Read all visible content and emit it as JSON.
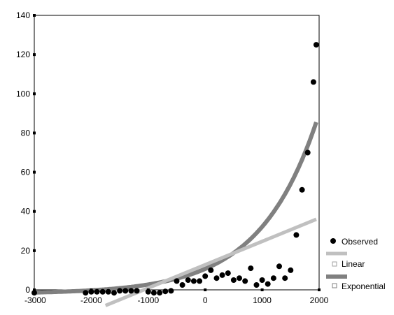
{
  "chart_data": {
    "type": "scatter",
    "xlim": [
      -3000,
      2000
    ],
    "ylim": [
      0,
      140
    ],
    "x_ticks": [
      -3000,
      -2000,
      -1000,
      0,
      1000,
      2000
    ],
    "y_ticks": [
      0,
      20,
      40,
      60,
      80,
      100,
      120,
      140
    ],
    "x_tick_labels": [
      "-3000",
      "-2000",
      "-1000",
      "0",
      "1000",
      "2000"
    ],
    "y_tick_labels": [
      "0",
      "20",
      "40",
      "60",
      "80",
      "100",
      "120",
      "140"
    ],
    "grid": false,
    "legend_position": "bottom-right",
    "series": [
      {
        "name": "Observed",
        "kind": "points",
        "color": "#000000",
        "x": [
          -3000,
          -2100,
          -2000,
          -1900,
          -1800,
          -1700,
          -1600,
          -1500,
          -1400,
          -1300,
          -1200,
          -1000,
          -900,
          -800,
          -700,
          -600,
          -500,
          -400,
          -300,
          -200,
          -100,
          0,
          100,
          200,
          300,
          400,
          500,
          600,
          700,
          800,
          900,
          1000,
          1100,
          1200,
          1300,
          1400,
          1500,
          1600,
          1700,
          1800,
          1900,
          1950
        ],
        "y": [
          -1.5,
          -1.5,
          -1,
          -1,
          -1,
          -1,
          -1.5,
          -0.5,
          -0.5,
          -0.5,
          -0.5,
          -1,
          -1.5,
          -1.5,
          -0.8,
          -0.5,
          4.5,
          2.5,
          5,
          4.5,
          4.5,
          7,
          10,
          6,
          7.5,
          8.5,
          5,
          6,
          4.5,
          11,
          2.5,
          5,
          3,
          6,
          12,
          6,
          10,
          28,
          51,
          70,
          106,
          125
        ]
      },
      {
        "name": "Linear",
        "kind": "line",
        "color": "#c0c0c0",
        "x": [
          -1750,
          1950
        ],
        "y": [
          -8,
          36
        ]
      },
      {
        "name": "Exponential",
        "kind": "curve",
        "color": "#808080",
        "formula": "y = 12.7 * exp(0.00099 * x) - 2",
        "x_range": [
          -3000,
          1950
        ]
      }
    ]
  }
}
